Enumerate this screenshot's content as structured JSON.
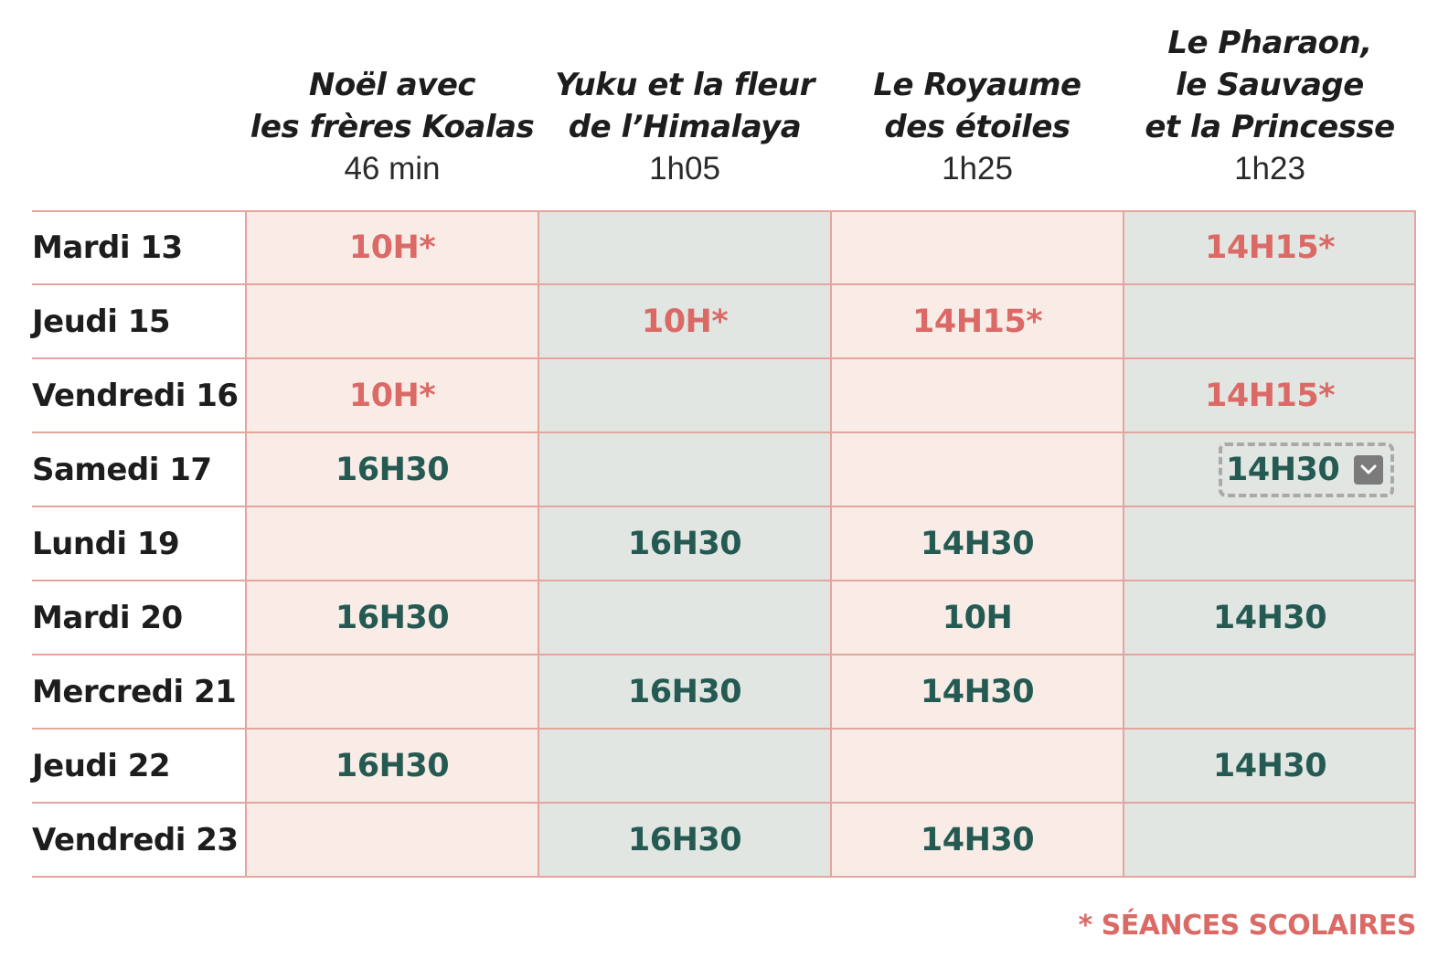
{
  "films": [
    {
      "title": "Noël avec\nles frères Koalas",
      "duration": "46 min"
    },
    {
      "title": "Yuku et la fleur\nde l’Himalaya",
      "duration": "1h05"
    },
    {
      "title": "Le Royaume\ndes étoiles",
      "duration": "1h25"
    },
    {
      "title": "Le Pharaon,\nle Sauvage\net la Princesse",
      "duration": "1h23"
    }
  ],
  "days": [
    {
      "label": "Mardi 13",
      "times": [
        {
          "text": "10H*",
          "school": true
        },
        null,
        null,
        {
          "text": "14H15*",
          "school": true
        }
      ]
    },
    {
      "label": "Jeudi 15",
      "times": [
        null,
        {
          "text": "10H*",
          "school": true
        },
        {
          "text": "14H15*",
          "school": true
        },
        null
      ]
    },
    {
      "label": "Vendredi 16",
      "times": [
        {
          "text": "10H*",
          "school": true
        },
        null,
        null,
        {
          "text": "14H15*",
          "school": true
        }
      ]
    },
    {
      "label": "Samedi 17",
      "times": [
        {
          "text": "16H30",
          "school": false
        },
        null,
        null,
        {
          "text": "14H30",
          "school": false,
          "selected": true
        }
      ]
    },
    {
      "label": "Lundi 19",
      "times": [
        null,
        {
          "text": "16H30",
          "school": false
        },
        {
          "text": "14H30",
          "school": false
        },
        null
      ]
    },
    {
      "label": "Mardi 20",
      "times": [
        {
          "text": "16H30",
          "school": false
        },
        null,
        {
          "text": "10H",
          "school": false
        },
        {
          "text": "14H30",
          "school": false
        }
      ]
    },
    {
      "label": "Mercredi 21",
      "times": [
        null,
        {
          "text": "16H30",
          "school": false
        },
        {
          "text": "14H30",
          "school": false
        },
        null
      ]
    },
    {
      "label": "Jeudi 22",
      "times": [
        {
          "text": "16H30",
          "school": false
        },
        null,
        null,
        {
          "text": "14H30",
          "school": false
        }
      ]
    },
    {
      "label": "Vendredi 23",
      "times": [
        null,
        {
          "text": "16H30",
          "school": false
        },
        {
          "text": "14H30",
          "school": false
        },
        null
      ]
    }
  ],
  "footnote": "* SÉANCES SCOLAIRES",
  "colors": {
    "school_time": "#db6a66",
    "regular_time": "#245a52",
    "pink_column": "#f9ece7",
    "green_column": "#e1e6e2",
    "grid_line": "#e3a59e"
  },
  "icons": {
    "dropdown": "chevron-down-icon"
  }
}
